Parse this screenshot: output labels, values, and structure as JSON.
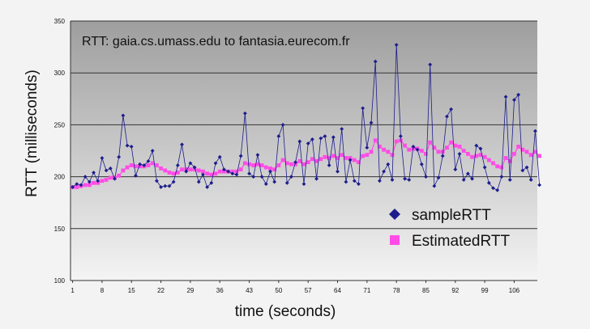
{
  "chart_data": {
    "type": "line",
    "title": "RTT: gaia.cs.umass.edu to fantasia.eurecom.fr",
    "xlabel": "time (seconds)",
    "ylabel": "RTT (milliseconds)",
    "ylim": [
      100,
      350
    ],
    "yticks": [
      "100",
      "150",
      "200",
      "250",
      "300",
      "350"
    ],
    "xticks": [
      "1",
      "8",
      "15",
      "22",
      "29",
      "36",
      "43",
      "50",
      "57",
      "64",
      "71",
      "78",
      "85",
      "92",
      "99",
      "106"
    ],
    "xrange": [
      1,
      111
    ],
    "grid": "horizontal",
    "legend": "bottom-right",
    "colors": {
      "sample": "#1c1c8c",
      "estimated": "#ff4ce6",
      "plot_top": "#9e9e9e",
      "plot_bottom": "#f4f4f4"
    },
    "series": [
      {
        "name": "sampleRTT",
        "marker": "diamond",
        "values": [
          190,
          193,
          192,
          200,
          195,
          204,
          196,
          218,
          206,
          208,
          198,
          219,
          259,
          230,
          229,
          201,
          212,
          211,
          215,
          225,
          196,
          190,
          191,
          191,
          195,
          211,
          231,
          205,
          213,
          209,
          195,
          202,
          190,
          194,
          213,
          219,
          207,
          205,
          203,
          202,
          220,
          261,
          203,
          200,
          221,
          200,
          193,
          205,
          195,
          239,
          250,
          194,
          200,
          214,
          234,
          193,
          232,
          236,
          198,
          237,
          239,
          211,
          238,
          205,
          246,
          195,
          216,
          196,
          193,
          266,
          228,
          252,
          311,
          196,
          205,
          212,
          197,
          327,
          239,
          198,
          197,
          229,
          226,
          212,
          200,
          308,
          191,
          199,
          220,
          258,
          265,
          207,
          222,
          197,
          203,
          198,
          230,
          227,
          209,
          194,
          189,
          187,
          200,
          277,
          197,
          274,
          279,
          206,
          209,
          197,
          244,
          192
        ],
        "xstart": 1
      },
      {
        "name": "EstimatedRTT",
        "marker": "square",
        "values": [
          190,
          190,
          191,
          192,
          192,
          194,
          194,
          196,
          197,
          199,
          199,
          201,
          206,
          209,
          211,
          210,
          210,
          210,
          211,
          213,
          211,
          208,
          206,
          204,
          203,
          204,
          207,
          207,
          207,
          207,
          206,
          205,
          203,
          202,
          203,
          205,
          205,
          205,
          205,
          205,
          207,
          213,
          212,
          211,
          212,
          211,
          209,
          208,
          207,
          211,
          216,
          213,
          212,
          212,
          215,
          212,
          214,
          217,
          215,
          217,
          219,
          218,
          220,
          218,
          221,
          218,
          218,
          216,
          214,
          220,
          221,
          224,
          235,
          229,
          226,
          224,
          221,
          234,
          235,
          230,
          226,
          227,
          227,
          225,
          222,
          233,
          228,
          224,
          224,
          228,
          233,
          230,
          229,
          225,
          222,
          219,
          220,
          221,
          219,
          216,
          213,
          210,
          209,
          218,
          215,
          222,
          229,
          226,
          224,
          221,
          224,
          220
        ],
        "xstart": 1
      }
    ]
  }
}
